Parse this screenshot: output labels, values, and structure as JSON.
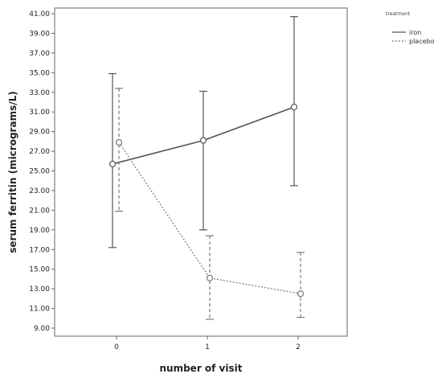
{
  "chart_data": {
    "type": "line",
    "title": "",
    "xlabel": "number of visit",
    "ylabel": "serum ferritin (micrograms/L)",
    "categories": [
      "0",
      "1",
      "2"
    ],
    "y_ticks": [
      "9.00",
      "11.00",
      "13.00",
      "15.00",
      "17.00",
      "19.00",
      "21.00",
      "23.00",
      "25.00",
      "27.00",
      "29.00",
      "31.00",
      "33.00",
      "35.00",
      "37.00",
      "39.00",
      "41.00"
    ],
    "ylim": [
      9,
      41
    ],
    "legend_title": "treatment",
    "legend_position": "right",
    "grid": false,
    "series": [
      {
        "name": "iron",
        "line_style": "solid",
        "color": "#555555",
        "values": [
          25.7,
          28.1,
          31.5
        ],
        "error_low": [
          17.2,
          19.0,
          23.5
        ],
        "error_high": [
          34.9,
          33.1,
          40.7
        ]
      },
      {
        "name": "placebo",
        "line_style": "dashed",
        "color": "#777777",
        "values": [
          27.9,
          14.1,
          12.5
        ],
        "error_low": [
          20.9,
          9.9,
          10.1
        ],
        "error_high": [
          33.4,
          18.4,
          16.7
        ]
      }
    ]
  }
}
